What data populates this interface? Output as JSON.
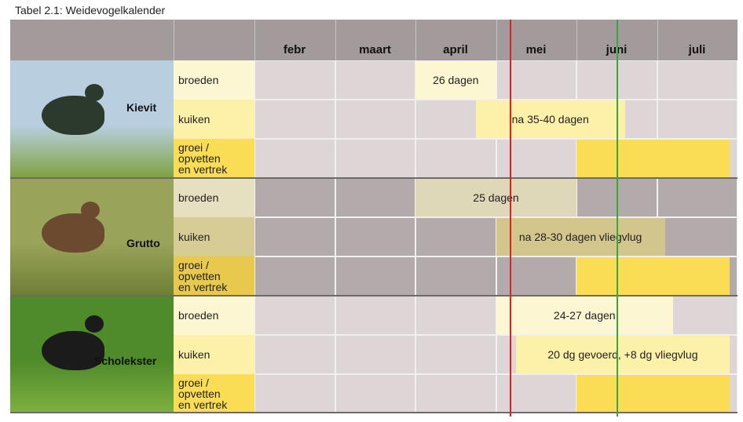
{
  "caption": "Tabel 2.1: Weidevogelkalender",
  "months": [
    "febr",
    "maart",
    "april",
    "mei",
    "juni",
    "juli"
  ],
  "birds": [
    {
      "name": "Kievit",
      "rows": [
        {
          "label": "broeden",
          "bar_text": "26 dagen"
        },
        {
          "label": "kuiken",
          "bar_text": "na 35-40 dagen"
        },
        {
          "label": "groei / opvetten en vertrek",
          "label_lines": [
            "groei /",
            "opvetten",
            "en vertrek"
          ],
          "bar_text": ""
        }
      ]
    },
    {
      "name": "Grutto",
      "rows": [
        {
          "label": "broeden",
          "bar_text": "25 dagen"
        },
        {
          "label": "kuiken",
          "bar_text": "na 28-30 dagen vliegvlug"
        },
        {
          "label": "groei / opvetten en vertrek",
          "label_lines": [
            "groei /",
            "opvetten",
            "en vertrek"
          ],
          "bar_text": ""
        }
      ]
    },
    {
      "name": "Scholekster",
      "rows": [
        {
          "label": "broeden",
          "bar_text": "24-27 dagen"
        },
        {
          "label": "kuiken",
          "bar_text": "20 dg gevoerd, +8 dg vliegvlug"
        },
        {
          "label": "groei / opvetten en vertrek",
          "label_lines": [
            "groei /",
            "opvetten",
            "en vertrek"
          ],
          "bar_text": ""
        }
      ]
    }
  ],
  "colors": {
    "header": "#a39b9b",
    "empty_cell": "#ddd5d6",
    "broeden_bar": "#fdf6d2",
    "kuiken_bar": "#fdf0a8",
    "groei_bar": "#fbdc55",
    "red_line": "#e02020",
    "green_line": "#3aa53a"
  }
}
